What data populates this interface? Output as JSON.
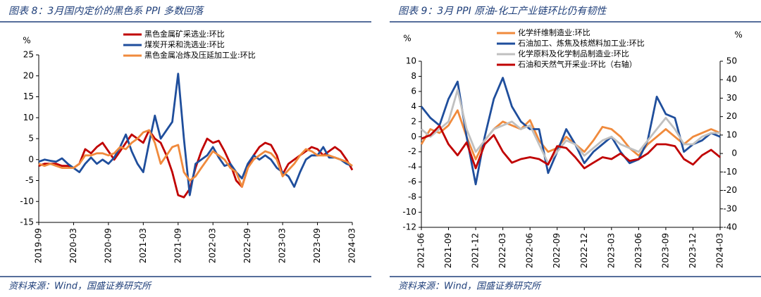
{
  "chart_data": [
    {
      "type": "line",
      "title": "图表 8：3月国内定价的黑色系 PPI 多数回落",
      "y_label": "%",
      "source": "资料来源：Wind，国盛证券研究所",
      "legend": "upper center",
      "categories": [
        "2019-09",
        null,
        null,
        null,
        null,
        null,
        "2020-03",
        null,
        null,
        null,
        null,
        null,
        "2020-09",
        null,
        null,
        null,
        null,
        null,
        "2021-03",
        null,
        null,
        null,
        null,
        null,
        "2021-09",
        null,
        null,
        null,
        null,
        null,
        "2022-03",
        null,
        null,
        null,
        null,
        null,
        "2022-09",
        null,
        null,
        null,
        null,
        null,
        "2023-03",
        null,
        null,
        null,
        null,
        null,
        "2023-09",
        null,
        null,
        null,
        null,
        null,
        "2024-03"
      ],
      "series": [
        {
          "name": "黑色金属矿采选业:环比",
          "color": "#c00000",
          "values": [
            -1.5,
            -1,
            -1,
            -1,
            -1.5,
            -1.5,
            -2,
            -1,
            2.5,
            1.5,
            3,
            4,
            2,
            0,
            2,
            4,
            6,
            5,
            4,
            7,
            5,
            4,
            1,
            -3,
            -8.5,
            -9,
            -7,
            -2,
            2,
            5,
            4,
            4.5,
            2,
            -1,
            -5,
            -6.5,
            -2,
            1,
            3,
            4,
            3.5,
            1,
            -3.5,
            -1,
            0,
            1,
            2,
            3,
            2.5,
            1,
            2,
            3,
            2,
            0,
            -2.5
          ]
        },
        {
          "name": "煤炭开采和洗选业:环比",
          "color": "#1f4e9c",
          "values": [
            -0.5,
            0,
            -0.3,
            -0.5,
            0.3,
            -1,
            -2,
            -3,
            -1,
            0.5,
            -1,
            0,
            -1,
            0.5,
            3,
            6,
            2,
            -1,
            -3,
            4,
            10.5,
            5,
            7,
            9,
            20.5,
            5,
            -8.5,
            -1,
            0,
            1,
            3,
            0.5,
            -1.5,
            -1,
            -3,
            -4.5,
            -1,
            1,
            0,
            1,
            0,
            -2,
            -3,
            -4,
            -6.5,
            -3,
            0,
            1,
            1,
            3,
            0.5,
            0.5,
            0,
            -1,
            -1.5
          ]
        },
        {
          "name": "黑色金属冶炼及压延加工业:环比",
          "color": "#f08a3c",
          "values": [
            -1,
            -1.5,
            -1,
            -1.5,
            -2,
            -2,
            -2,
            -1,
            1,
            1,
            1.5,
            1.5,
            1,
            1.5,
            3,
            2.5,
            4,
            5,
            6.5,
            7,
            4,
            -1,
            1,
            3,
            3.5,
            -3,
            -5,
            -4,
            -2,
            0,
            2,
            1,
            0,
            -2,
            -3,
            -6.5,
            -2,
            0,
            1,
            2,
            1.5,
            0,
            -4,
            -2.5,
            -1,
            1,
            2.5,
            2,
            1,
            1,
            1,
            0.5,
            0,
            -0.5,
            -1.5
          ]
        }
      ],
      "ylim": [
        -15,
        25
      ],
      "yticks": [
        25,
        20,
        15,
        10,
        5,
        0,
        -5,
        -10,
        -15
      ]
    },
    {
      "type": "line",
      "title": "图表 9：3月 PPI 原油-化工产业链环比仍有韧性",
      "y_label": "%",
      "y2_label": "%",
      "source": "资料来源：Wind，国盛证券研究所",
      "legend": "upper left",
      "categories": [
        "2021-06",
        null,
        null,
        "2021-09",
        null,
        null,
        "2021-12",
        null,
        null,
        "2022-03",
        null,
        null,
        "2022-06",
        null,
        null,
        "2022-09",
        null,
        null,
        "2022-12",
        null,
        null,
        "2023-03",
        null,
        null,
        "2023-06",
        null,
        null,
        "2023-09",
        null,
        null,
        "2023-12",
        null,
        null,
        "2024-03"
      ],
      "series": [
        {
          "name": "化学纤维制造业:环比",
          "color": "#f08a3c",
          "values": [
            -1,
            1,
            0.5,
            1.5,
            3.5,
            0,
            -3,
            -0.5,
            1,
            2,
            1.5,
            1,
            2.2,
            -0.5,
            -2,
            -1.5,
            0,
            -1,
            -2,
            -0.5,
            1.3,
            1,
            0,
            -1.5,
            -2.5,
            -1,
            0,
            1,
            0,
            -1,
            0,
            0.5,
            1,
            0.5
          ]
        },
        {
          "name": "石油加工、炼焦及核燃料加工业:环比",
          "color": "#1f4e9c",
          "values": [
            4,
            2.5,
            1.5,
            5,
            7.3,
            0,
            -6.3,
            0,
            5,
            7.8,
            4,
            2,
            1,
            1,
            -4.8,
            -2,
            1,
            -1,
            -3.5,
            -2,
            -1,
            0,
            -2,
            -3.5,
            -3,
            -0.5,
            5.3,
            3,
            2.5,
            -2,
            -1,
            -0.5,
            0.5,
            0
          ]
        },
        {
          "name": "化学原料及化学制品制造业:环比",
          "color": "#c0c0c0",
          "values": [
            1,
            0,
            1,
            2,
            6.2,
            1,
            -2,
            -0.5,
            1,
            1.5,
            2,
            1,
            1.5,
            -1,
            -3.5,
            -2,
            -0.5,
            -1,
            -2.5,
            -1.5,
            -0.5,
            0,
            -1,
            -1.5,
            -2,
            -0.5,
            1,
            2.5,
            1,
            -1,
            -1,
            0,
            0.5,
            0.5
          ]
        },
        {
          "name": "石油和天然气开采业:环比（右轴）",
          "color": "#c00000",
          "axis": "y2",
          "values": [
            8,
            10,
            15,
            5,
            -1,
            6,
            -8,
            5,
            10,
            1,
            -5,
            -3,
            -2,
            -3,
            -6,
            4,
            3,
            -2,
            -8,
            -5,
            -2,
            -3,
            0,
            -4,
            -3,
            0,
            5,
            5,
            4,
            -3,
            -6,
            -1,
            2,
            -2
          ]
        }
      ],
      "ylim": [
        -12,
        10
      ],
      "yticks": [
        10,
        8,
        6,
        4,
        2,
        0,
        -2,
        -4,
        -6,
        -8,
        -10,
        -12
      ],
      "y2lim": [
        -40,
        50
      ],
      "y2ticks": [
        50,
        40,
        30,
        20,
        10,
        0,
        -10,
        -20,
        -30,
        -40
      ]
    }
  ]
}
